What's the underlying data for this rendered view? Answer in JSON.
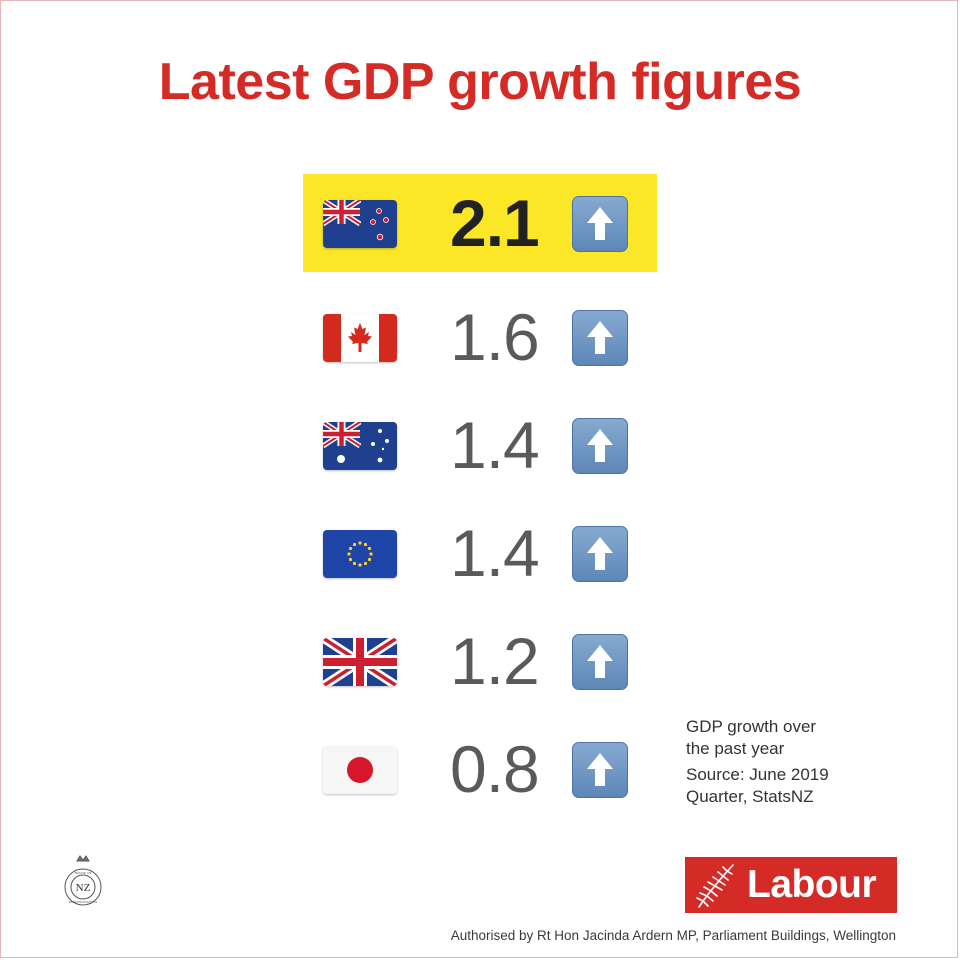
{
  "title": "Latest GDP growth figures",
  "rows": [
    {
      "country": "New Zealand",
      "flag_icon": "new-zealand-flag-icon",
      "value": "2.1",
      "direction": "up",
      "highlighted": true
    },
    {
      "country": "Canada",
      "flag_icon": "canada-flag-icon",
      "value": "1.6",
      "direction": "up",
      "highlighted": false
    },
    {
      "country": "Australia",
      "flag_icon": "australia-flag-icon",
      "value": "1.4",
      "direction": "up",
      "highlighted": false
    },
    {
      "country": "European Union",
      "flag_icon": "eu-flag-icon",
      "value": "1.4",
      "direction": "up",
      "highlighted": false
    },
    {
      "country": "United Kingdom",
      "flag_icon": "uk-flag-icon",
      "value": "1.2",
      "direction": "up",
      "highlighted": false
    },
    {
      "country": "Japan",
      "flag_icon": "japan-flag-icon",
      "value": "0.8",
      "direction": "up",
      "highlighted": false
    }
  ],
  "note": {
    "line1": "GDP growth over",
    "line2": "the past year",
    "line3": "Source: June 2019",
    "line4": "Quarter, StatsNZ"
  },
  "logo": {
    "text": "Labour",
    "icon": "fern-icon"
  },
  "crest": {
    "icon": "house-of-representatives-crest-icon",
    "text": "NZ",
    "ring_text": "HOUSE OF REPRESENTATIVES"
  },
  "authorisation": "Authorised by Rt Hon Jacinda Ardern MP, Parliament Buildings, Wellington",
  "colors": {
    "accent": "#d42b27",
    "highlight": "#fbe726",
    "value_text": "#5a5a5a",
    "arrow_blue": "#6e95c2"
  }
}
